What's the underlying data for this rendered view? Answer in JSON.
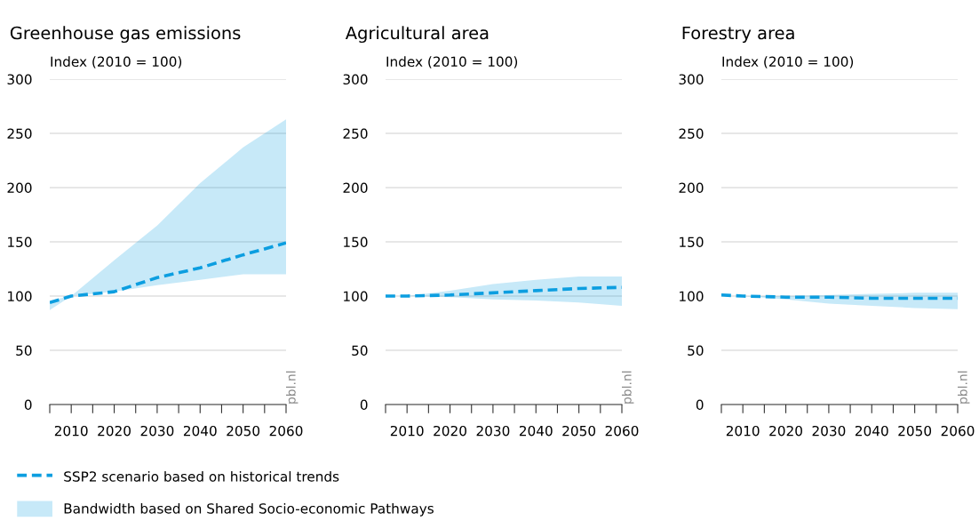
{
  "chart_data": [
    {
      "type": "line",
      "title": "Greenhouse gas emissions",
      "ylabel": "Index (2010 = 100)",
      "x": [
        2005,
        2010,
        2020,
        2030,
        2040,
        2050,
        2060
      ],
      "xlim": [
        2005,
        2060
      ],
      "xticks": [
        {
          "value": 2005,
          "label": null
        },
        2010,
        {
          "value": 2015,
          "label": null
        },
        2020,
        {
          "value": 2025,
          "label": null
        },
        2030,
        {
          "value": 2035,
          "label": null
        },
        2040,
        {
          "value": 2045,
          "label": null
        },
        2050,
        {
          "value": 2055,
          "label": null
        },
        2060
      ],
      "ylim": [
        0,
        300
      ],
      "yticks": [
        0,
        50,
        100,
        150,
        200,
        250,
        300
      ],
      "grid": "y",
      "legend": "bottom",
      "annotations": [
        "pbl.nl",
        "Bandwidth based on Shared Socio-economic Pathways"
      ],
      "series": [
        {
          "name": "SSP2 scenario based on historical trends",
          "type": "line",
          "line_style": "dashed",
          "color": "#0c9ee0",
          "values": [
            94,
            100,
            104,
            117,
            126,
            138,
            149
          ],
          "lower": [
            87,
            100,
            104,
            110,
            115,
            120,
            120
          ],
          "upper": [
            96,
            100,
            133,
            165,
            204,
            237,
            263
          ]
        }
      ]
    },
    {
      "type": "line",
      "title": "Agricultural area",
      "ylabel": "Index (2010 = 100)",
      "x": [
        2005,
        2010,
        2020,
        2030,
        2040,
        2050,
        2060
      ],
      "xlim": [
        2005,
        2060
      ],
      "xticks": [
        {
          "value": 2005,
          "label": null
        },
        2010,
        {
          "value": 2015,
          "label": null
        },
        2020,
        {
          "value": 2025,
          "label": null
        },
        2030,
        {
          "value": 2035,
          "label": null
        },
        2040,
        {
          "value": 2045,
          "label": null
        },
        2050,
        {
          "value": 2055,
          "label": null
        },
        2060
      ],
      "ylim": [
        0,
        300
      ],
      "yticks": [
        0,
        50,
        100,
        150,
        200,
        250,
        300
      ],
      "grid": "y",
      "annotations": [
        "pbl.nl"
      ],
      "series": [
        {
          "type": "line",
          "line_style": "dashed",
          "color": "#0c9ee0",
          "values": [
            100,
            100,
            101,
            103,
            105,
            107,
            108
          ],
          "lower": [
            100,
            100,
            99,
            97,
            96,
            94,
            91
          ],
          "upper": [
            100,
            100,
            105,
            111,
            115,
            118,
            118
          ]
        }
      ]
    },
    {
      "type": "line",
      "title": "Forestry area",
      "ylabel": "Index (2010 = 100)",
      "x": [
        2005,
        2010,
        2020,
        2030,
        2040,
        2050,
        2060
      ],
      "xlim": [
        2005,
        2060
      ],
      "xticks": [
        {
          "value": 2005,
          "label": null
        },
        2010,
        {
          "value": 2015,
          "label": null
        },
        2020,
        {
          "value": 2025,
          "label": null
        },
        2030,
        {
          "value": 2035,
          "label": null
        },
        2040,
        {
          "value": 2045,
          "label": null
        },
        2050,
        {
          "value": 2055,
          "label": null
        },
        2060
      ],
      "ylim": [
        0,
        300
      ],
      "yticks": [
        0,
        50,
        100,
        150,
        200,
        250,
        300
      ],
      "grid": "y",
      "annotations": [
        "pbl.nl"
      ],
      "series": [
        {
          "type": "line",
          "line_style": "dashed",
          "color": "#0c9ee0",
          "values": [
            101,
            100,
            99,
            99,
            98,
            98,
            98
          ],
          "lower": [
            101,
            100,
            97,
            93,
            91,
            89,
            88
          ],
          "upper": [
            101,
            100,
            100,
            101,
            102,
            103,
            103
          ]
        }
      ]
    }
  ]
}
